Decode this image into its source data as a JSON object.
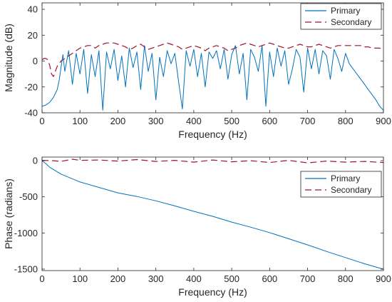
{
  "colors": {
    "primary": "#0072BD",
    "secondary": "#A2142F",
    "axes": "#262626",
    "background": "#ffffff"
  },
  "chart_data": [
    {
      "type": "line",
      "title": "",
      "xlabel": "Frequency (Hz)",
      "ylabel": "Magnitude (dB)",
      "xlim": [
        0,
        900
      ],
      "ylim": [
        -40,
        45
      ],
      "xticks": [
        0,
        100,
        200,
        300,
        400,
        500,
        600,
        700,
        800,
        900
      ],
      "yticks": [
        -40,
        -20,
        0,
        20,
        40
      ],
      "grid": false,
      "legend_position": "top-right",
      "legend": [
        "Primary",
        "Secondary"
      ],
      "series": [
        {
          "name": "Primary",
          "style": "solid",
          "x": [
            0,
            10,
            20,
            30,
            40,
            45,
            50,
            55,
            60,
            70,
            80,
            90,
            100,
            110,
            120,
            130,
            140,
            150,
            160,
            170,
            180,
            190,
            200,
            210,
            220,
            230,
            240,
            250,
            260,
            270,
            280,
            290,
            300,
            310,
            320,
            330,
            340,
            350,
            360,
            370,
            380,
            390,
            400,
            410,
            420,
            430,
            440,
            450,
            460,
            470,
            480,
            490,
            500,
            510,
            520,
            530,
            540,
            550,
            560,
            570,
            580,
            590,
            600,
            610,
            620,
            630,
            640,
            650,
            660,
            670,
            680,
            690,
            700,
            710,
            720,
            730,
            740,
            750,
            760,
            770,
            780,
            790,
            800,
            810,
            820,
            830,
            840,
            850,
            860,
            870,
            880,
            890,
            900
          ],
          "y": [
            -35,
            -34,
            -32,
            -28,
            -22,
            -15,
            -5,
            5,
            -8,
            8,
            -18,
            6,
            -10,
            9,
            -25,
            5,
            -12,
            8,
            -38,
            7,
            -6,
            9,
            -15,
            4,
            -20,
            10,
            -5,
            7,
            -22,
            12,
            -8,
            6,
            -30,
            3,
            -12,
            8,
            -2,
            6,
            -16,
            -37,
            8,
            -4,
            9,
            -12,
            6,
            -20,
            7,
            2,
            8,
            -6,
            9,
            -14,
            5,
            12,
            -10,
            6,
            -30,
            9,
            3,
            -8,
            12,
            -35,
            7,
            -12,
            10,
            -4,
            8,
            -18,
            -6,
            9,
            3,
            -24,
            10,
            -6,
            9,
            -10,
            8,
            4,
            -14,
            9,
            2,
            -8,
            6,
            -2,
            -6,
            -10,
            -14,
            -18,
            -22,
            -26,
            -30,
            -35,
            -38
          ]
        },
        {
          "name": "Secondary",
          "style": "dashed",
          "x": [
            0,
            5,
            10,
            15,
            20,
            25,
            30,
            35,
            40,
            45,
            50,
            60,
            70,
            80,
            90,
            100,
            110,
            120,
            130,
            140,
            150,
            160,
            170,
            180,
            190,
            200,
            210,
            220,
            230,
            240,
            250,
            260,
            270,
            280,
            290,
            300,
            310,
            320,
            330,
            340,
            350,
            360,
            370,
            380,
            390,
            400,
            410,
            420,
            430,
            440,
            450,
            460,
            470,
            480,
            490,
            500,
            510,
            520,
            530,
            540,
            550,
            560,
            570,
            580,
            590,
            600,
            610,
            620,
            630,
            640,
            650,
            660,
            670,
            680,
            690,
            700,
            710,
            720,
            730,
            740,
            750,
            760,
            770,
            780,
            790,
            800,
            810,
            820,
            830,
            840,
            850,
            860,
            870,
            880,
            890,
            900
          ],
          "y": [
            1,
            2,
            2,
            1,
            -3,
            -10,
            -12,
            -8,
            -4,
            -2,
            0,
            2,
            4,
            6,
            8,
            10,
            11,
            12,
            12,
            10,
            12,
            13,
            14,
            14,
            14,
            13,
            12,
            11,
            9,
            10,
            12,
            13,
            11,
            9,
            10,
            11,
            12,
            13,
            14,
            13,
            12,
            11,
            9,
            10,
            11,
            12,
            11,
            10,
            8,
            10,
            11,
            12,
            11,
            10,
            8,
            9,
            10,
            12,
            13,
            14,
            13,
            12,
            11,
            12,
            13,
            14,
            13,
            12,
            11,
            10,
            10,
            11,
            12,
            13,
            12,
            11,
            11,
            12,
            13,
            12,
            11,
            10,
            11,
            12,
            12,
            12,
            12,
            12,
            12,
            12,
            11,
            11,
            10,
            10,
            10,
            9
          ]
        }
      ]
    },
    {
      "type": "line",
      "title": "",
      "xlabel": "Frequency (Hz)",
      "ylabel": "Phase (radians)",
      "xlim": [
        0,
        900
      ],
      "ylim": [
        -1520,
        50
      ],
      "xticks": [
        0,
        100,
        200,
        300,
        400,
        500,
        600,
        700,
        800,
        900
      ],
      "yticks": [
        -1500,
        -1000,
        -500,
        0
      ],
      "grid": false,
      "legend_position": "top-right",
      "legend": [
        "Primary",
        "Secondary"
      ],
      "series": [
        {
          "name": "Primary",
          "style": "solid",
          "x": [
            0,
            10,
            20,
            50,
            100,
            150,
            200,
            250,
            300,
            350,
            400,
            450,
            500,
            550,
            600,
            650,
            700,
            750,
            800,
            850,
            900
          ],
          "y": [
            0,
            -40,
            -90,
            -185,
            -295,
            -370,
            -445,
            -495,
            -555,
            -625,
            -700,
            -770,
            -850,
            -920,
            -995,
            -1080,
            -1165,
            -1255,
            -1340,
            -1425,
            -1500
          ]
        },
        {
          "name": "Secondary",
          "style": "dashed",
          "x": [
            0,
            30,
            50,
            80,
            100,
            150,
            200,
            250,
            300,
            350,
            400,
            450,
            500,
            550,
            600,
            650,
            700,
            750,
            800,
            850,
            900
          ],
          "y": [
            5,
            0,
            -10,
            20,
            5,
            10,
            -5,
            15,
            -10,
            5,
            -20,
            10,
            -15,
            0,
            -25,
            5,
            -30,
            -5,
            -20,
            -10,
            -25
          ]
        }
      ]
    }
  ]
}
